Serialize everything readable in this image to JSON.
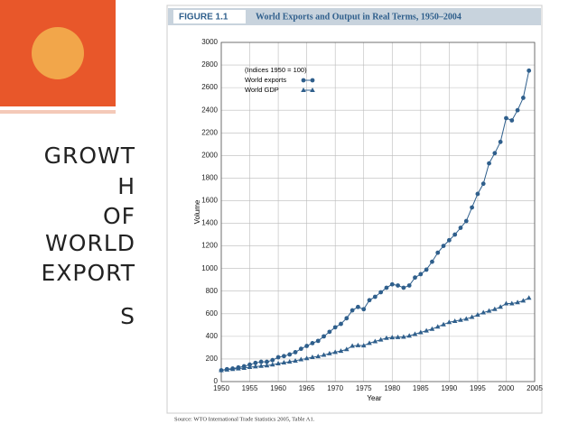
{
  "slide": {
    "title_lines": [
      "GROWT",
      "H",
      "OF",
      "WORLD",
      "EXPORT",
      "S"
    ]
  },
  "chart_data": {
    "type": "line",
    "figure_label": "FIGURE 1.1",
    "title": "World Exports and Output in Real Terms, 1950–2004",
    "legend_title": "(Indices 1950 = 100)",
    "xlabel": "Year",
    "ylabel": "Volume",
    "source": "Source: WTO International Trade Statistics 2005, Table A1.",
    "x": [
      1950,
      1951,
      1952,
      1953,
      1954,
      1955,
      1956,
      1957,
      1958,
      1959,
      1960,
      1961,
      1962,
      1963,
      1964,
      1965,
      1966,
      1967,
      1968,
      1969,
      1970,
      1971,
      1972,
      1973,
      1974,
      1975,
      1976,
      1977,
      1978,
      1979,
      1980,
      1981,
      1982,
      1983,
      1984,
      1985,
      1986,
      1987,
      1988,
      1989,
      1990,
      1991,
      1992,
      1993,
      1994,
      1995,
      1996,
      1997,
      1998,
      1999,
      2000,
      2001,
      2002,
      2003,
      2004
    ],
    "series": [
      {
        "name": "World exports",
        "color": "#2f5f8c",
        "marker": "circle",
        "values": [
          100,
          110,
          115,
          125,
          135,
          150,
          165,
          175,
          175,
          190,
          215,
          225,
          240,
          260,
          290,
          315,
          340,
          360,
          400,
          440,
          480,
          510,
          560,
          630,
          660,
          640,
          720,
          750,
          790,
          830,
          860,
          850,
          830,
          850,
          920,
          950,
          990,
          1060,
          1140,
          1200,
          1250,
          1300,
          1360,
          1420,
          1540,
          1660,
          1750,
          1930,
          2020,
          2120,
          2330,
          2310,
          2400,
          2510,
          2750
        ]
      },
      {
        "name": "World GDP",
        "color": "#2f5f8c",
        "marker": "triangle",
        "values": [
          100,
          105,
          110,
          115,
          120,
          128,
          133,
          138,
          142,
          150,
          160,
          168,
          176,
          184,
          195,
          205,
          215,
          222,
          235,
          248,
          260,
          270,
          285,
          315,
          320,
          318,
          340,
          355,
          370,
          385,
          390,
          392,
          395,
          405,
          420,
          435,
          450,
          465,
          485,
          505,
          525,
          535,
          545,
          555,
          570,
          590,
          610,
          625,
          640,
          660,
          690,
          690,
          700,
          715,
          740
        ]
      }
    ],
    "xlim": [
      1950,
      2005
    ],
    "xticks": [
      1950,
      1955,
      1960,
      1965,
      1970,
      1975,
      1980,
      1985,
      1990,
      1995,
      2000,
      2005
    ],
    "ylim": [
      0,
      3000
    ],
    "yticks": [
      0,
      200,
      400,
      600,
      800,
      1000,
      1200,
      1400,
      1600,
      1800,
      2000,
      2200,
      2400,
      2600,
      2800,
      3000
    ],
    "grid": true
  }
}
